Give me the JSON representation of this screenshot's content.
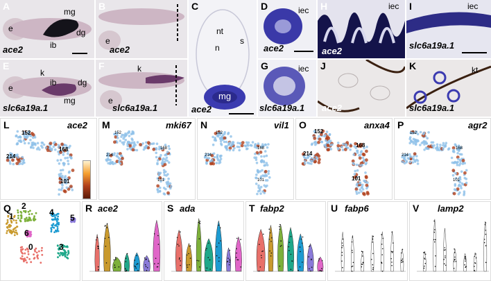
{
  "panels": {
    "A": {
      "label": "A",
      "gene": "ace2",
      "annotations": [
        "e",
        "mg",
        "dg",
        "ib"
      ]
    },
    "B": {
      "label": "B",
      "gene": "ace2",
      "annotations": [
        "e"
      ]
    },
    "C": {
      "label": "C",
      "gene": "ace2",
      "annotations": [
        "nt",
        "n",
        "s",
        "mg"
      ]
    },
    "D": {
      "label": "D",
      "gene": "ace2",
      "annotations": [
        "iec"
      ]
    },
    "E": {
      "label": "E",
      "gene": "slc6a19a.1",
      "annotations": [
        "e",
        "k",
        "ib",
        "dg",
        "mg"
      ]
    },
    "F": {
      "label": "F",
      "gene": "slc6a19a.1",
      "annotations": [
        "k",
        "e"
      ]
    },
    "G": {
      "label": "G",
      "gene": "slc6a19a.1",
      "annotations": [
        "iec"
      ]
    },
    "H": {
      "label": "H",
      "gene": "ace2",
      "annotations": [
        "iec"
      ]
    },
    "I": {
      "label": "I",
      "gene": "slc6a19a.1",
      "annotations": [
        "iec"
      ]
    },
    "J": {
      "label": "J",
      "gene": "ace2"
    },
    "K": {
      "label": "K",
      "gene": "slc6a19a.1",
      "annotations": [
        "kt"
      ]
    },
    "L": {
      "label": "L",
      "gene": "ace2",
      "clusters": [
        "152",
        "168",
        "214",
        "101"
      ]
    },
    "M": {
      "label": "M",
      "gene": "mki67",
      "clusters": [
        "152",
        "168",
        "214",
        "101"
      ]
    },
    "N": {
      "label": "N",
      "gene": "vil1",
      "clusters": [
        "152",
        "168",
        "214",
        "101"
      ]
    },
    "O": {
      "label": "O",
      "gene": "anxa4",
      "clusters": [
        "152",
        "168",
        "214",
        "101"
      ]
    },
    "P": {
      "label": "P",
      "gene": "agr2",
      "clusters": [
        "152",
        "168",
        "214",
        "101"
      ]
    },
    "Q": {
      "label": "Q",
      "clusters": [
        "0",
        "1",
        "2",
        "3",
        "4",
        "5",
        "6"
      ]
    },
    "R": {
      "label": "R",
      "gene": "ace2"
    },
    "S": {
      "label": "S",
      "gene": "ada"
    },
    "T": {
      "label": "T",
      "gene": "fabp2"
    },
    "U": {
      "label": "U",
      "gene": "fabp6"
    },
    "V": {
      "label": "V",
      "gene": "lamp2"
    }
  },
  "colors": {
    "cluster0": "#e8706a",
    "cluster1": "#c99a2e",
    "cluster2": "#7db03a",
    "cluster3": "#1fa88a",
    "cluster4": "#1d9bd1",
    "cluster5": "#8a7ad9",
    "cluster6": "#e066c8",
    "stain": "#2b2a8c",
    "umap_low": "#8fc1e8",
    "umap_high": "#b0401c"
  }
}
